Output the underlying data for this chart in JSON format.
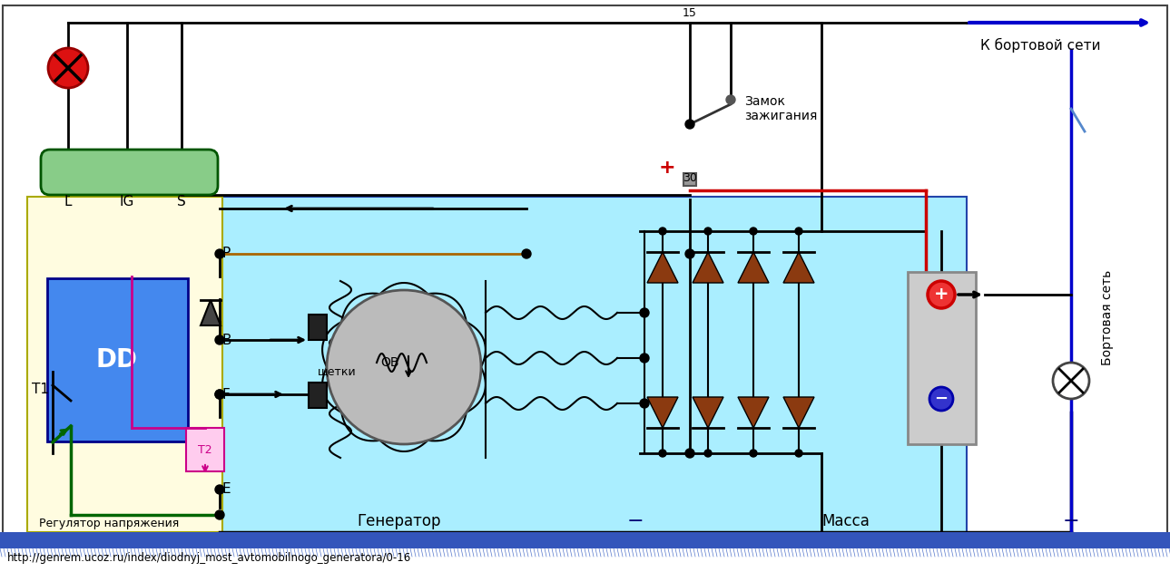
{
  "url": "http://genrem.ucoz.ru/index/diodnyj_most_avtomobilnogo_generatora/0-16",
  "bg_color": "#ffffff",
  "cyan_color": "#aaeeff",
  "yellow_color": "#fffce0",
  "diode_color": "#8B3a10",
  "battery_color": "#bbbbbb",
  "labels": {
    "L": "L",
    "IG": "IG",
    "S": "S",
    "P": "P",
    "B": "B",
    "F": "F",
    "E": "E",
    "DD": "DD",
    "T1": "T1",
    "T2": "T2",
    "shchetki": "щетки",
    "OV": "ОВ",
    "reg": "Регулятор напряжения",
    "gen": "Генератор",
    "massa": "Масса",
    "bortset": "Бортовая сеть",
    "k_bortset": "К бортовой сети",
    "zamok": "Замок\nзажигания",
    "num15": "15",
    "num30": "30",
    "minus": "−"
  }
}
